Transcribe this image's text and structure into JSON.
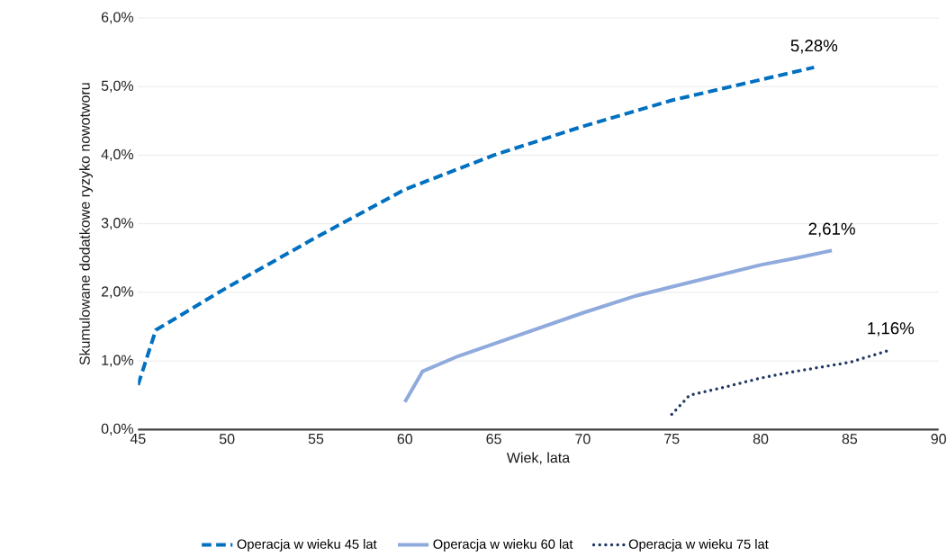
{
  "chart_data": {
    "type": "line",
    "xlabel": "Wiek, lata",
    "ylabel": "Skumulowane dodatkowe ryzyko nowotworu",
    "xlim": [
      45,
      90
    ],
    "xticks": [
      45,
      50,
      55,
      60,
      65,
      70,
      75,
      80,
      85,
      90
    ],
    "ylim": [
      0,
      6
    ],
    "yticks": [
      {
        "value": 0,
        "label": "0,0%"
      },
      {
        "value": 1,
        "label": "1,0%"
      },
      {
        "value": 2,
        "label": "2,0%"
      },
      {
        "value": 3,
        "label": "3,0%"
      },
      {
        "value": 4,
        "label": "4,0%"
      },
      {
        "value": 5,
        "label": "5,0%"
      },
      {
        "value": 6,
        "label": "6,0%"
      }
    ],
    "grid": "y",
    "legend": "bottom",
    "marker": "none",
    "series": [
      {
        "name": "Operacja w wieku 45 lat",
        "color": "#0070c0",
        "line_style": "dashed",
        "x": [
          45,
          46,
          50,
          55,
          60,
          65,
          70,
          75,
          80,
          83
        ],
        "values": [
          0.65,
          1.45,
          2.07,
          2.8,
          3.5,
          4.0,
          4.42,
          4.8,
          5.1,
          5.28
        ]
      },
      {
        "name": "Operacja w wieku 60 lat",
        "color": "#8faadc",
        "line_style": "solid",
        "x": [
          60,
          61,
          63,
          65,
          70,
          73,
          75,
          80,
          82,
          84
        ],
        "values": [
          0.4,
          0.85,
          1.07,
          1.25,
          1.7,
          1.95,
          2.08,
          2.4,
          2.5,
          2.61
        ]
      },
      {
        "name": "Operacja w wieku 75 lat",
        "color": "#203864",
        "line_style": "dotted",
        "x": [
          75,
          76,
          78,
          80,
          82,
          85,
          87.3
        ],
        "values": [
          0.22,
          0.5,
          0.62,
          0.75,
          0.85,
          0.98,
          1.16
        ]
      }
    ],
    "annotations": [
      {
        "text": "5,28%",
        "x": 83,
        "y": 5.28
      },
      {
        "text": "2,61%",
        "x": 84,
        "y": 2.61
      },
      {
        "text": "1,16%",
        "x": 87.3,
        "y": 1.16
      }
    ]
  }
}
